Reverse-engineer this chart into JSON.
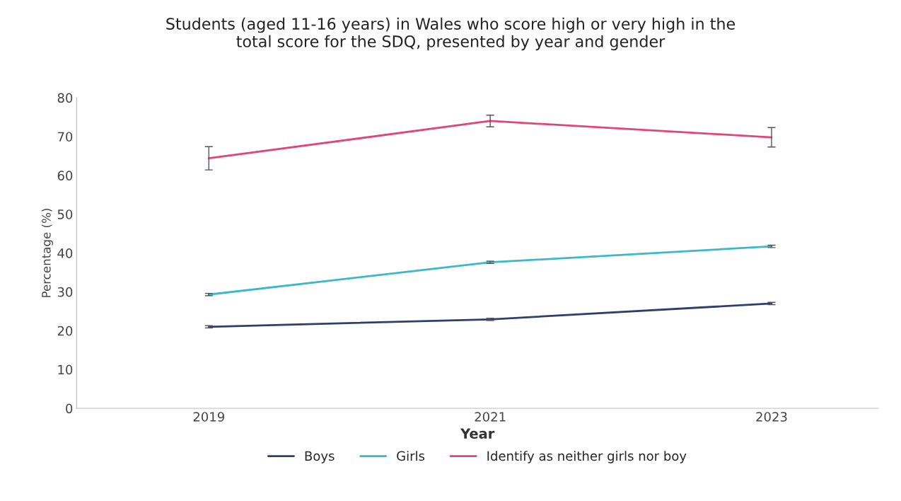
{
  "chart_data": {
    "type": "line",
    "title": "Students (aged 11-16 years) in Wales who score high or very high in the\ntotal score for the SDQ, presented by year and gender",
    "xlabel": "Year",
    "ylabel": "Percentage (%)",
    "categories": [
      "2019",
      "2021",
      "2023"
    ],
    "series": [
      {
        "name": "Boys",
        "color": "#2e3f6e",
        "values": [
          21.0,
          22.9,
          27.0
        ],
        "errors": [
          0.3,
          0.3,
          0.3
        ]
      },
      {
        "name": "Girls",
        "color": "#3bb8c9",
        "values": [
          29.3,
          37.6,
          41.7
        ],
        "errors": [
          0.3,
          0.3,
          0.3
        ]
      },
      {
        "name": "Identify as neither girls nor boy",
        "color": "#e0457b",
        "values": [
          64.4,
          74.0,
          69.8
        ],
        "errors": [
          3,
          1.5,
          2.5
        ]
      }
    ],
    "ylim": [
      0,
      80
    ],
    "yticks": [
      0,
      10,
      20,
      30,
      40,
      50,
      60,
      70,
      80
    ],
    "grid": false,
    "legend": "bottom",
    "marker": "none",
    "line_style": "solid"
  }
}
